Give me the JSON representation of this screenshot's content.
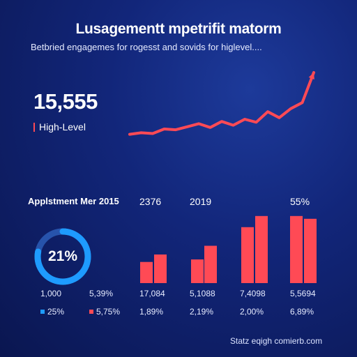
{
  "header": {
    "title": "Lusagementt mpetrifit matorm",
    "subtitle": "Betbried engagemes for rogesst and sovids for higlevel...."
  },
  "kpi": {
    "value": "15,555",
    "label": "High-Level"
  },
  "section": {
    "title": "Applstment Mer 2015",
    "column_labels": [
      "2376",
      "2019",
      "55%"
    ]
  },
  "donut": {
    "value_label": "21%",
    "percent": 21
  },
  "stats_row_1": [
    "1,000",
    "5,39%",
    "17,084",
    "5,1088",
    "7,4098",
    "5,5694"
  ],
  "stats_row_2": [
    "25%",
    "5,75%",
    "1,89%",
    "2,19%",
    "2,00%",
    "6,89%"
  ],
  "footer": {
    "text": "Statz eqigh comierb.com"
  },
  "colors": {
    "background_dark": "#0a1650",
    "accent_red": "#ff4a55",
    "accent_blue": "#1e9bff"
  },
  "chart_data": [
    {
      "type": "line",
      "x": [
        1,
        2,
        3,
        4,
        5,
        6,
        7,
        8,
        9,
        10,
        11,
        12,
        13,
        14,
        15,
        16,
        17
      ],
      "values": [
        18,
        20,
        19,
        25,
        24,
        28,
        32,
        27,
        35,
        30,
        38,
        34,
        48,
        40,
        52,
        60,
        100
      ],
      "ylim": [
        0,
        100
      ]
    },
    {
      "type": "bar",
      "categories": [
        "1",
        "2",
        "3",
        "4",
        "5",
        "6"
      ],
      "series": [
        {
          "values": [
            34,
            46,
            38,
            60,
            90,
            108
          ]
        }
      ],
      "ylim": [
        0,
        110
      ]
    }
  ]
}
